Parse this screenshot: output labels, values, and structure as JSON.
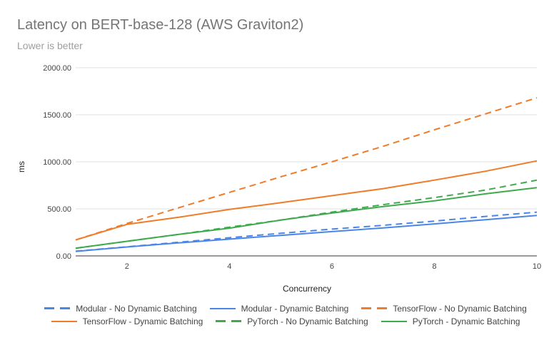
{
  "chart_data": {
    "type": "line",
    "title": "Latency on BERT-base-128 (AWS Graviton2)",
    "subtitle": "Lower is better",
    "xlabel": "Concurrency",
    "ylabel": "ms",
    "xlim": [
      1,
      10
    ],
    "ylim": [
      0,
      2000
    ],
    "xticks": [
      "2",
      "4",
      "6",
      "8",
      "10"
    ],
    "xtick_values": [
      2,
      4,
      6,
      8,
      10
    ],
    "yticks": [
      "0.00",
      "500.00",
      "1000.00",
      "1500.00",
      "2000.00"
    ],
    "ytick_values": [
      0,
      500,
      1000,
      1500,
      2000
    ],
    "grid": true,
    "legend_position": "bottom",
    "x": [
      1,
      2,
      3,
      4,
      5,
      6,
      7,
      8,
      9,
      10
    ],
    "series": [
      {
        "name": "Modular - No Dynamic Batching",
        "color": "#4a86e8",
        "dashed": true,
        "values": [
          50,
          97,
          145,
          193,
          240,
          285,
          325,
          370,
          420,
          465
        ]
      },
      {
        "name": "Modular - Dynamic Batching",
        "color": "#4a86e8",
        "dashed": false,
        "values": [
          48,
          95,
          138,
          178,
          218,
          258,
          298,
          340,
          385,
          430
        ]
      },
      {
        "name": "TensorFlow - No Dynamic Batching",
        "color": "#f07b28",
        "dashed": true,
        "values": [
          170,
          345,
          510,
          675,
          840,
          1000,
          1165,
          1340,
          1510,
          1680
        ]
      },
      {
        "name": "TensorFlow - Dynamic Batching",
        "color": "#f07b28",
        "dashed": false,
        "values": [
          170,
          335,
          410,
          495,
          565,
          640,
          715,
          805,
          900,
          1010
        ]
      },
      {
        "name": "PyTorch - No Dynamic Batching",
        "color": "#3eaa4d",
        "dashed": true,
        "values": [
          82,
          155,
          228,
          305,
          380,
          465,
          545,
          620,
          700,
          805
        ]
      },
      {
        "name": "PyTorch - Dynamic Batching",
        "color": "#3eaa4d",
        "dashed": false,
        "values": [
          82,
          155,
          228,
          295,
          380,
          455,
          525,
          585,
          660,
          725
        ]
      }
    ]
  }
}
